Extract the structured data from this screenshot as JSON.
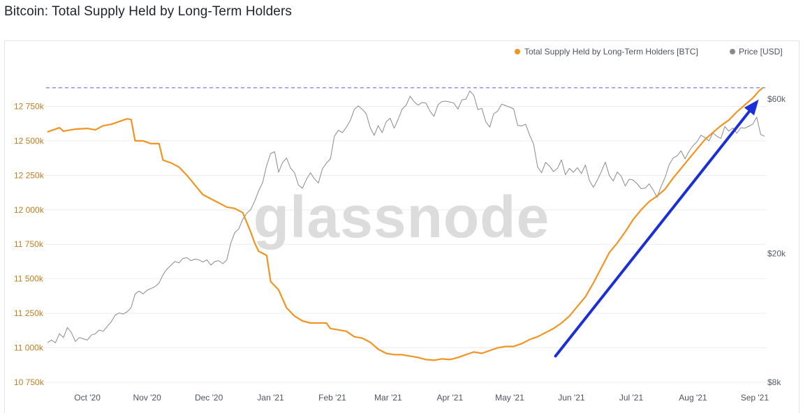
{
  "title": "Bitcoin: Total Supply Held by Long-Term Holders",
  "watermark": "glassnode",
  "colors": {
    "supply": "#f09422",
    "price": "#8a8a8a",
    "arrow": "#1a2fd6",
    "ath_line": "#7b7ff0",
    "grid": "#ebedf0"
  },
  "chart_data": {
    "type": "line",
    "title": "Bitcoin: Total Supply Held by Long-Term Holders",
    "legend_position": "top-right",
    "legend": [
      {
        "label": "Total Supply Held by Long-Term Holders [BTC]",
        "color": "#f09422"
      },
      {
        "label": "Price [USD]",
        "color": "#8a8a8a"
      }
    ],
    "x_tick_labels": [
      "Oct '20",
      "Nov '20",
      "Dec '20",
      "Jan '21",
      "Feb '21",
      "Mar '21",
      "Apr '21",
      "May '21",
      "Jun '21",
      "Jul '21",
      "Aug '21",
      "Sep '21"
    ],
    "x_ticks_day_index": [
      20,
      50,
      81,
      112,
      143,
      171,
      202,
      232,
      263,
      293,
      324,
      355
    ],
    "x_range_day_index": [
      0,
      361
    ],
    "y_left": {
      "label": "Total Supply Held by Long-Term Holders [BTC]",
      "range": [
        10750000,
        12990000
      ],
      "tick_values": [
        10750000,
        11000000,
        11250000,
        11500000,
        11750000,
        12000000,
        12250000,
        12500000,
        12750000
      ],
      "tick_labels": [
        "10 750k",
        "11 000k",
        "11 250k",
        "11 500k",
        "11 750k",
        "12 000k",
        "12 250k",
        "12 500k",
        "12 750k"
      ]
    },
    "y_right": {
      "label": "Price [USD]",
      "scale": "log",
      "range": [
        8000,
        72000
      ],
      "tick_values": [
        8000,
        20000,
        60000
      ],
      "tick_labels": [
        "$8k",
        "$20k",
        "$60k"
      ]
    },
    "reference_line": {
      "series": "supply",
      "value": 12885000,
      "style": "dashed"
    },
    "annotation": {
      "type": "arrow",
      "from": {
        "day": 255,
        "supply": 10940000
      },
      "to": {
        "day": 357,
        "supply": 12800000
      }
    },
    "series": [
      {
        "name": "Total Supply Held by Long-Term Holders [BTC]",
        "axis": "left",
        "points": [
          [
            0,
            12565000
          ],
          [
            6,
            12595000
          ],
          [
            8,
            12570000
          ],
          [
            14,
            12585000
          ],
          [
            20,
            12590000
          ],
          [
            24,
            12580000
          ],
          [
            28,
            12610000
          ],
          [
            32,
            12620000
          ],
          [
            36,
            12640000
          ],
          [
            40,
            12660000
          ],
          [
            42,
            12655000
          ],
          [
            44,
            12500000
          ],
          [
            48,
            12500000
          ],
          [
            52,
            12480000
          ],
          [
            56,
            12480000
          ],
          [
            58,
            12360000
          ],
          [
            62,
            12340000
          ],
          [
            66,
            12310000
          ],
          [
            70,
            12250000
          ],
          [
            74,
            12180000
          ],
          [
            78,
            12110000
          ],
          [
            82,
            12080000
          ],
          [
            86,
            12050000
          ],
          [
            90,
            12020000
          ],
          [
            94,
            12010000
          ],
          [
            98,
            11980000
          ],
          [
            102,
            11840000
          ],
          [
            104,
            11760000
          ],
          [
            106,
            11700000
          ],
          [
            110,
            11670000
          ],
          [
            112,
            11480000
          ],
          [
            116,
            11420000
          ],
          [
            120,
            11290000
          ],
          [
            124,
            11230000
          ],
          [
            128,
            11195000
          ],
          [
            132,
            11180000
          ],
          [
            136,
            11180000
          ],
          [
            140,
            11180000
          ],
          [
            142,
            11140000
          ],
          [
            146,
            11130000
          ],
          [
            150,
            11120000
          ],
          [
            154,
            11080000
          ],
          [
            158,
            11070000
          ],
          [
            162,
            11040000
          ],
          [
            166,
            10990000
          ],
          [
            170,
            10960000
          ],
          [
            174,
            10950000
          ],
          [
            178,
            10950000
          ],
          [
            182,
            10940000
          ],
          [
            186,
            10930000
          ],
          [
            190,
            10915000
          ],
          [
            194,
            10910000
          ],
          [
            198,
            10920000
          ],
          [
            202,
            10915000
          ],
          [
            206,
            10930000
          ],
          [
            210,
            10950000
          ],
          [
            214,
            10970000
          ],
          [
            218,
            10960000
          ],
          [
            222,
            10980000
          ],
          [
            226,
            11000000
          ],
          [
            230,
            11010000
          ],
          [
            234,
            11010000
          ],
          [
            238,
            11030000
          ],
          [
            242,
            11060000
          ],
          [
            246,
            11080000
          ],
          [
            250,
            11110000
          ],
          [
            254,
            11140000
          ],
          [
            258,
            11180000
          ],
          [
            262,
            11230000
          ],
          [
            266,
            11300000
          ],
          [
            270,
            11370000
          ],
          [
            274,
            11470000
          ],
          [
            278,
            11580000
          ],
          [
            282,
            11690000
          ],
          [
            286,
            11760000
          ],
          [
            290,
            11840000
          ],
          [
            294,
            11930000
          ],
          [
            298,
            12000000
          ],
          [
            302,
            12060000
          ],
          [
            306,
            12100000
          ],
          [
            310,
            12150000
          ],
          [
            314,
            12230000
          ],
          [
            318,
            12300000
          ],
          [
            322,
            12370000
          ],
          [
            326,
            12440000
          ],
          [
            330,
            12510000
          ],
          [
            334,
            12560000
          ],
          [
            338,
            12610000
          ],
          [
            342,
            12650000
          ],
          [
            346,
            12710000
          ],
          [
            350,
            12760000
          ],
          [
            354,
            12810000
          ],
          [
            357,
            12860000
          ],
          [
            359,
            12885000
          ]
        ]
      },
      {
        "name": "Price [USD]",
        "axis": "right",
        "points": [
          [
            0,
            10600
          ],
          [
            2,
            10800
          ],
          [
            4,
            10600
          ],
          [
            6,
            11300
          ],
          [
            8,
            11000
          ],
          [
            10,
            11800
          ],
          [
            12,
            11400
          ],
          [
            14,
            10700
          ],
          [
            16,
            11000
          ],
          [
            18,
            10900
          ],
          [
            20,
            10800
          ],
          [
            22,
            11200
          ],
          [
            24,
            11300
          ],
          [
            26,
            11600
          ],
          [
            28,
            11500
          ],
          [
            30,
            11900
          ],
          [
            32,
            12300
          ],
          [
            34,
            12900
          ],
          [
            36,
            13100
          ],
          [
            38,
            13000
          ],
          [
            40,
            13200
          ],
          [
            42,
            13600
          ],
          [
            44,
            15000
          ],
          [
            46,
            15300
          ],
          [
            48,
            15000
          ],
          [
            50,
            15400
          ],
          [
            52,
            15600
          ],
          [
            54,
            15800
          ],
          [
            56,
            16200
          ],
          [
            58,
            17200
          ],
          [
            60,
            17900
          ],
          [
            62,
            18400
          ],
          [
            64,
            18900
          ],
          [
            66,
            18700
          ],
          [
            68,
            19300
          ],
          [
            70,
            19400
          ],
          [
            72,
            19000
          ],
          [
            74,
            19200
          ],
          [
            76,
            19100
          ],
          [
            78,
            18800
          ],
          [
            80,
            19100
          ],
          [
            82,
            18400
          ],
          [
            84,
            18900
          ],
          [
            86,
            19000
          ],
          [
            88,
            18600
          ],
          [
            90,
            19100
          ],
          [
            92,
            21500
          ],
          [
            94,
            23200
          ],
          [
            96,
            23800
          ],
          [
            98,
            25500
          ],
          [
            100,
            26600
          ],
          [
            102,
            27300
          ],
          [
            104,
            29000
          ],
          [
            106,
            31200
          ],
          [
            108,
            33100
          ],
          [
            110,
            37400
          ],
          [
            112,
            40700
          ],
          [
            114,
            41200
          ],
          [
            116,
            35600
          ],
          [
            118,
            38200
          ],
          [
            120,
            39400
          ],
          [
            122,
            36700
          ],
          [
            124,
            35500
          ],
          [
            126,
            32500
          ],
          [
            128,
            31800
          ],
          [
            130,
            33900
          ],
          [
            132,
            35500
          ],
          [
            134,
            34000
          ],
          [
            136,
            33000
          ],
          [
            138,
            36500
          ],
          [
            140,
            38000
          ],
          [
            142,
            39200
          ],
          [
            144,
            46000
          ],
          [
            146,
            48000
          ],
          [
            148,
            47200
          ],
          [
            150,
            49000
          ],
          [
            152,
            51500
          ],
          [
            154,
            55600
          ],
          [
            156,
            57100
          ],
          [
            158,
            55700
          ],
          [
            160,
            54000
          ],
          [
            162,
            48900
          ],
          [
            164,
            46300
          ],
          [
            166,
            49600
          ],
          [
            168,
            47200
          ],
          [
            170,
            51000
          ],
          [
            172,
            52300
          ],
          [
            174,
            48700
          ],
          [
            176,
            51900
          ],
          [
            178,
            55800
          ],
          [
            180,
            57300
          ],
          [
            182,
            61200
          ],
          [
            184,
            58800
          ],
          [
            186,
            57400
          ],
          [
            188,
            58500
          ],
          [
            190,
            58200
          ],
          [
            192,
            55000
          ],
          [
            194,
            53000
          ],
          [
            196,
            57500
          ],
          [
            198,
            58900
          ],
          [
            200,
            59000
          ],
          [
            202,
            58700
          ],
          [
            204,
            58200
          ],
          [
            206,
            55800
          ],
          [
            208,
            59600
          ],
          [
            210,
            59900
          ],
          [
            212,
            63500
          ],
          [
            214,
            61500
          ],
          [
            216,
            55600
          ],
          [
            218,
            56100
          ],
          [
            220,
            51000
          ],
          [
            222,
            49100
          ],
          [
            224,
            54000
          ],
          [
            226,
            55000
          ],
          [
            228,
            57800
          ],
          [
            230,
            57200
          ],
          [
            232,
            56600
          ],
          [
            234,
            55900
          ],
          [
            236,
            49700
          ],
          [
            238,
            49500
          ],
          [
            240,
            50100
          ],
          [
            242,
            46400
          ],
          [
            244,
            43500
          ],
          [
            246,
            37000
          ],
          [
            248,
            35500
          ],
          [
            250,
            38200
          ],
          [
            252,
            37200
          ],
          [
            254,
            35800
          ],
          [
            256,
            36600
          ],
          [
            258,
            38900
          ],
          [
            260,
            35000
          ],
          [
            262,
            36600
          ],
          [
            264,
            35600
          ],
          [
            266,
            36800
          ],
          [
            268,
            35300
          ],
          [
            270,
            37500
          ],
          [
            272,
            33600
          ],
          [
            274,
            32000
          ],
          [
            276,
            33700
          ],
          [
            278,
            35800
          ],
          [
            280,
            38300
          ],
          [
            282,
            34800
          ],
          [
            284,
            33500
          ],
          [
            286,
            35700
          ],
          [
            288,
            34600
          ],
          [
            290,
            32300
          ],
          [
            292,
            33900
          ],
          [
            294,
            33700
          ],
          [
            296,
            32800
          ],
          [
            298,
            31700
          ],
          [
            300,
            31800
          ],
          [
            302,
            32800
          ],
          [
            304,
            31400
          ],
          [
            306,
            29800
          ],
          [
            308,
            32200
          ],
          [
            310,
            34300
          ],
          [
            312,
            37500
          ],
          [
            314,
            39400
          ],
          [
            316,
            40000
          ],
          [
            318,
            41500
          ],
          [
            320,
            39200
          ],
          [
            322,
            41300
          ],
          [
            324,
            43000
          ],
          [
            326,
            44200
          ],
          [
            328,
            46300
          ],
          [
            330,
            45600
          ],
          [
            332,
            44500
          ],
          [
            334,
            47100
          ],
          [
            336,
            46000
          ],
          [
            338,
            45300
          ],
          [
            340,
            49300
          ],
          [
            342,
            47700
          ],
          [
            344,
            48800
          ],
          [
            346,
            47000
          ],
          [
            348,
            48900
          ],
          [
            350,
            48700
          ],
          [
            352,
            49400
          ],
          [
            354,
            50100
          ],
          [
            356,
            52700
          ],
          [
            358,
            46600
          ],
          [
            360,
            46000
          ]
        ]
      }
    ]
  }
}
